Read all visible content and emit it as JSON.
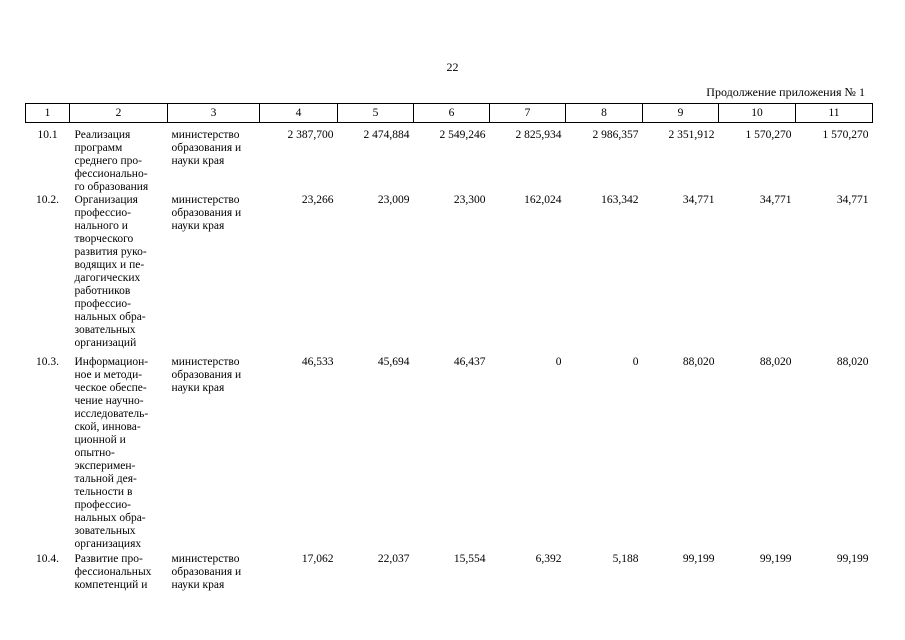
{
  "page_number": "22",
  "continuation_label": "Продолжение приложения № 1",
  "table": {
    "headers": [
      "1",
      "2",
      "3",
      "4",
      "5",
      "6",
      "7",
      "8",
      "9",
      "10",
      "11"
    ],
    "rows": [
      {
        "code": "10.1",
        "name": "Реализация\nпрограмм\nсреднего про-\nфессионально-\nго образования",
        "executor": "министерство\nобразования и\nнауки края",
        "values": [
          "2 387,700",
          "2 474,884",
          "2 549,246",
          "2 825,934",
          "2 986,357",
          "2 351,912",
          "1 570,270",
          "1 570,270"
        ]
      },
      {
        "code": "10.2.",
        "name": "Организация\nпрофессио-\nнального и\nтворческого\nразвития руко-\nводящих и пе-\nдагогических\nработников\nпрофессио-\nнальных обра-\nзовательных\nорганизаций",
        "executor": "министерство\nобразования и\nнауки края",
        "values": [
          "23,266",
          "23,009",
          "23,300",
          "162,024",
          "163,342",
          "34,771",
          "34,771",
          "34,771"
        ]
      },
      {
        "code": "10.3.",
        "name": "Информацион-\nное и методи-\nческое обеспе-\nчение научно-\nисследователь-\nской, иннова-\nционной и\nопытно-\nэксперимен-\nтальной дея-\nтельности в\nпрофессио-\nнальных обра-\nзовательных\nорганизациях",
        "executor": "министерство\nобразования и\nнауки края",
        "values": [
          "46,533",
          "45,694",
          "46,437",
          "0",
          "0",
          "88,020",
          "88,020",
          "88,020"
        ]
      },
      {
        "code": "10.4.",
        "name": "Развитие про-\nфессиональных\nкомпетенций и",
        "executor": "министерство\nобразования и\nнауки края",
        "values": [
          "17,062",
          "22,037",
          "15,554",
          "6,392",
          "5,188",
          "99,199",
          "99,199",
          "99,199"
        ]
      }
    ]
  }
}
